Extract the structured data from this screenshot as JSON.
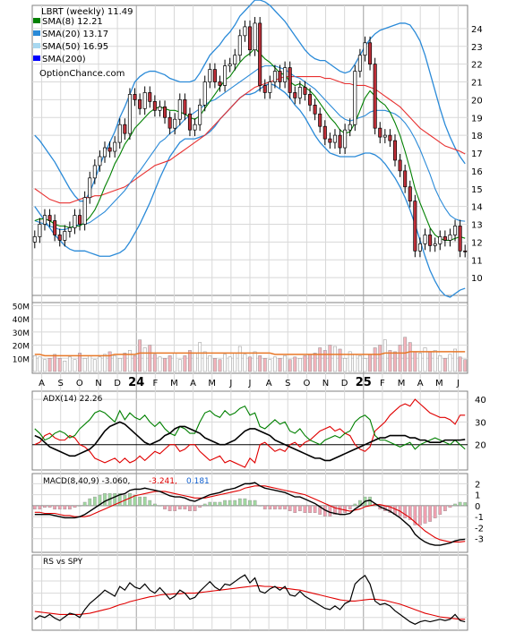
{
  "chart_data": {
    "type": "line",
    "title": "LBRT (weekly) 11.49",
    "watermark": "OptionChance.com",
    "colors": {
      "grid": "#d8d8d8",
      "up_candle": "#ffffff",
      "down_candle": "#c0303a",
      "wick": "#000000",
      "sma8": "#008000",
      "sma20": "#2a8ad8",
      "sma50": "#e83030",
      "sma200": "#0000ff",
      "bollinger_fill": "#ffff66",
      "volume_bar": "#f4b4bc",
      "volume_avg": "#e87828",
      "adx_line": "#000000",
      "di_plus": "#008000",
      "di_minus": "#e00000",
      "macd_line": "#000000",
      "macd_signal": "#e00000",
      "hist_pos": "#a0d8a0",
      "hist_neg": "#f0a0b0",
      "rs_line": "#000000",
      "rs_ma": "#e00000"
    },
    "legend": [
      {
        "label": "SMA(8) 12.21",
        "color": "#008000"
      },
      {
        "label": "SMA(20) 13.17",
        "color": "#2a8ad8"
      },
      {
        "label": "SMA(50) 16.95",
        "color": "#a8d8f0"
      },
      {
        "label": "SMA(200)",
        "color": "#0000ff"
      }
    ],
    "x_month_labels": [
      "A",
      "S",
      "O",
      "N",
      "D",
      "24",
      "F",
      "M",
      "A",
      "M",
      "J",
      "J",
      "A",
      "S",
      "O",
      "N",
      "D",
      "25",
      "F",
      "M",
      "A",
      "M",
      "J"
    ],
    "price_axis": {
      "min": 9,
      "max": 25,
      "ticks": [
        10,
        11,
        12,
        13,
        14,
        15,
        16,
        17,
        18,
        19,
        20,
        21,
        22,
        23,
        24
      ]
    },
    "volume_axis": {
      "min": 0,
      "max": 55000000,
      "tick_labels": [
        "10M",
        "20M",
        "30M",
        "40M",
        "50M"
      ],
      "tick_values": [
        10000000,
        20000000,
        30000000,
        40000000,
        50000000
      ]
    },
    "close": [
      12.3,
      13.0,
      13.5,
      13.2,
      12.4,
      12.1,
      12.6,
      12.8,
      13.5,
      13.0,
      14.5,
      15.6,
      16.3,
      16.8,
      17.3,
      17.1,
      17.6,
      18.6,
      18.1,
      20.3,
      20.0,
      19.5,
      20.4,
      19.9,
      19.4,
      19.6,
      19.0,
      18.4,
      18.9,
      20.0,
      19.2,
      18.3,
      18.6,
      19.7,
      21.0,
      21.7,
      21.0,
      20.8,
      21.9,
      22.0,
      22.5,
      23.6,
      24.1,
      22.8,
      24.3,
      20.8,
      20.4,
      21.0,
      21.6,
      21.0,
      21.8,
      20.4,
      20.1,
      20.7,
      20.3,
      19.7,
      19.2,
      18.5,
      17.8,
      17.6,
      18.0,
      17.3,
      18.3,
      18.6,
      21.6,
      22.5,
      23.2,
      22.0,
      18.4,
      17.9,
      18.0,
      17.7,
      16.6,
      16.0,
      15.1,
      14.3,
      11.5,
      11.9,
      12.4,
      11.8,
      11.9,
      12.3,
      12.1,
      12.4,
      12.9,
      11.5,
      11.49
    ],
    "sma8": [
      13.2,
      13.3,
      13.3,
      13.2,
      13.0,
      12.9,
      12.9,
      12.8,
      12.9,
      12.9,
      13.1,
      13.4,
      13.8,
      14.4,
      15.1,
      15.7,
      16.4,
      16.9,
      17.5,
      17.9,
      18.4,
      18.7,
      19.0,
      19.3,
      19.5,
      19.6,
      19.5,
      19.4,
      19.4,
      19.3,
      19.2,
      19.0,
      18.9,
      19.1,
      19.5,
      19.9,
      20.3,
      20.7,
      21.1,
      21.3,
      21.7,
      22.1,
      22.4,
      22.6,
      22.9,
      22.6,
      22.3,
      22.1,
      21.8,
      21.5,
      21.4,
      21.0,
      20.8,
      20.9,
      20.7,
      20.5,
      20.2,
      19.8,
      19.4,
      19.0,
      18.7,
      18.3,
      18.1,
      18.2,
      18.7,
      19.4,
      20.1,
      20.5,
      20.2,
      19.9,
      19.7,
      19.3,
      18.7,
      18.0,
      17.1,
      16.1,
      15.0,
      14.2,
      13.5,
      12.8,
      12.4,
      12.2,
      12.1,
      12.1,
      12.2,
      12.3,
      12.21
    ],
    "sma20": [
      13.2,
      13.1,
      13.0,
      12.9,
      12.8,
      12.7,
      12.7,
      12.8,
      12.9,
      13.0,
      13.0,
      13.1,
      13.3,
      13.5,
      13.7,
      14.0,
      14.3,
      14.6,
      14.9,
      15.3,
      15.7,
      16.0,
      16.4,
      16.8,
      17.2,
      17.6,
      17.8,
      18.1,
      18.3,
      18.6,
      18.9,
      19.1,
      19.3,
      19.5,
      19.7,
      19.9,
      20.0,
      20.2,
      20.4,
      20.6,
      20.8,
      21.0,
      21.2,
      21.4,
      21.6,
      21.8,
      21.9,
      21.9,
      21.9,
      21.8,
      21.7,
      21.5,
      21.3,
      21.2,
      21.0,
      20.8,
      20.6,
      20.3,
      20.0,
      19.7,
      19.4,
      19.1,
      18.9,
      18.8,
      18.9,
      19.0,
      19.1,
      19.3,
      19.4,
      19.4,
      19.4,
      19.3,
      19.2,
      19.0,
      18.7,
      18.3,
      17.8,
      17.2,
      16.5,
      15.8,
      15.0,
      14.4,
      13.9,
      13.5,
      13.3,
      13.2,
      13.17
    ],
    "sma50": [
      15.0,
      14.8,
      14.6,
      14.4,
      14.3,
      14.2,
      14.2,
      14.2,
      14.3,
      14.4,
      14.5,
      14.5,
      14.6,
      14.6,
      14.7,
      14.8,
      14.9,
      15.0,
      15.1,
      15.3,
      15.5,
      15.7,
      15.9,
      16.1,
      16.3,
      16.4,
      16.5,
      16.6,
      16.8,
      17.0,
      17.2,
      17.4,
      17.6,
      17.8,
      18.0,
      18.3,
      18.6,
      18.9,
      19.2,
      19.5,
      19.8,
      20.1,
      20.3,
      20.5,
      20.7,
      20.8,
      20.9,
      21.0,
      21.1,
      21.2,
      21.3,
      21.3,
      21.3,
      21.3,
      21.3,
      21.3,
      21.3,
      21.3,
      21.2,
      21.2,
      21.1,
      21.0,
      20.9,
      20.9,
      20.8,
      20.8,
      20.8,
      20.7,
      20.6,
      20.4,
      20.2,
      20.0,
      19.8,
      19.6,
      19.3,
      19.0,
      18.7,
      18.4,
      18.2,
      18.0,
      17.8,
      17.6,
      17.4,
      17.3,
      17.2,
      17.1,
      16.95
    ],
    "bb_upper": [
      18.0,
      17.7,
      17.3,
      16.9,
      16.5,
      16.0,
      15.5,
      15.0,
      14.6,
      14.3,
      14.3,
      14.8,
      15.5,
      16.3,
      17.0,
      17.6,
      18.2,
      19.0,
      19.6,
      20.3,
      21.0,
      21.3,
      21.5,
      21.6,
      21.6,
      21.5,
      21.4,
      21.2,
      21.1,
      21.0,
      21.0,
      21.0,
      21.1,
      21.5,
      22.0,
      22.5,
      22.8,
      23.1,
      23.5,
      23.8,
      24.2,
      24.7,
      25.0,
      25.3,
      25.6,
      25.6,
      25.5,
      25.3,
      25.0,
      24.7,
      24.4,
      24.0,
      23.6,
      23.2,
      22.8,
      22.5,
      22.3,
      22.2,
      22.2,
      22.0,
      21.8,
      21.6,
      21.5,
      21.6,
      22.0,
      22.5,
      23.0,
      23.4,
      23.7,
      23.9,
      24.0,
      24.1,
      24.2,
      24.3,
      24.3,
      24.2,
      23.8,
      23.3,
      22.5,
      21.5,
      20.5,
      19.5,
      18.6,
      17.9,
      17.3,
      16.8,
      16.4
    ],
    "bb_lower": [
      14.0,
      13.6,
      13.2,
      12.8,
      12.4,
      12.1,
      11.8,
      11.6,
      11.5,
      11.5,
      11.5,
      11.4,
      11.3,
      11.2,
      11.2,
      11.2,
      11.3,
      11.4,
      11.6,
      12.0,
      12.5,
      13.0,
      13.6,
      14.2,
      14.9,
      15.6,
      16.2,
      16.8,
      17.2,
      17.6,
      17.8,
      17.8,
      17.8,
      17.9,
      18.0,
      18.2,
      18.5,
      18.9,
      19.2,
      19.5,
      19.8,
      20.1,
      20.3,
      20.3,
      20.4,
      20.6,
      20.8,
      20.9,
      20.8,
      20.6,
      20.4,
      20.1,
      19.7,
      19.4,
      19.0,
      18.5,
      18.0,
      17.6,
      17.3,
      17.0,
      16.9,
      16.8,
      16.8,
      16.8,
      16.8,
      16.9,
      17.0,
      17.0,
      16.9,
      16.7,
      16.4,
      16.0,
      15.6,
      15.1,
      14.5,
      13.8,
      13.0,
      12.1,
      11.2,
      10.4,
      9.8,
      9.3,
      9.0,
      8.9,
      9.1,
      9.3,
      9.4
    ],
    "volume_m": [
      12,
      11,
      9,
      10,
      13,
      10,
      8,
      11,
      9,
      14,
      10,
      12,
      9,
      11,
      13,
      15,
      12,
      10,
      14,
      16,
      12,
      24,
      18,
      20,
      13,
      11,
      10,
      12,
      14,
      9,
      12,
      16,
      14,
      22,
      15,
      12,
      10,
      9,
      13,
      11,
      14,
      19,
      13,
      11,
      15,
      12,
      10,
      9,
      11,
      10,
      12,
      9,
      11,
      10,
      12,
      13,
      14,
      18,
      16,
      20,
      19,
      17,
      10,
      15,
      13,
      12,
      10,
      13,
      18,
      20,
      24,
      16,
      15,
      20,
      26,
      22,
      15,
      14,
      18,
      15,
      16,
      12,
      10,
      13,
      17,
      11,
      9
    ],
    "volume_avg_m": [
      13,
      13,
      12,
      12,
      12,
      12,
      12,
      12,
      12,
      12,
      12,
      12,
      12,
      12,
      12,
      12,
      13,
      13,
      13,
      13,
      13,
      14,
      14,
      14,
      14,
      14,
      14,
      14,
      14,
      14,
      14,
      14,
      14,
      14,
      14,
      14,
      14,
      14,
      14,
      14,
      14,
      14,
      14,
      14,
      14,
      14,
      14,
      14,
      13,
      13,
      13,
      13,
      13,
      13,
      13,
      13,
      13,
      13,
      13,
      13,
      13,
      13,
      13,
      13,
      13,
      13,
      13,
      13,
      13,
      13,
      14,
      14,
      14,
      14,
      14,
      15,
      15,
      15,
      15,
      15,
      15,
      15,
      15,
      15,
      15,
      15,
      15
    ],
    "adx_panel": {
      "title": "ADX(14) 22.26",
      "ticks": [
        20,
        30,
        40
      ],
      "min": 10,
      "max": 42,
      "reference": 20,
      "adx": [
        24,
        23,
        21,
        19,
        18,
        17,
        16,
        15,
        15,
        16,
        17,
        18,
        20,
        23,
        26,
        28,
        29,
        30,
        29,
        27,
        25,
        23,
        21,
        20,
        21,
        22,
        24,
        25,
        27,
        28,
        28,
        27,
        26,
        25,
        23,
        22,
        21,
        20,
        20,
        21,
        22,
        24,
        26,
        27,
        27,
        26,
        25,
        24,
        22,
        21,
        20,
        19,
        18,
        17,
        16,
        15,
        14,
        14,
        13,
        13,
        14,
        15,
        16,
        17,
        18,
        19,
        20,
        21,
        22,
        23,
        23,
        24,
        24,
        24,
        24,
        23,
        23,
        22,
        22,
        21,
        21,
        21,
        22,
        22,
        22,
        22,
        22.26
      ],
      "di_plus": [
        27,
        25,
        22,
        23,
        25,
        26,
        25,
        23,
        24,
        27,
        29,
        31,
        34,
        35,
        34,
        32,
        30,
        35,
        31,
        34,
        32,
        31,
        33,
        30,
        28,
        30,
        27,
        25,
        24,
        28,
        27,
        25,
        25,
        30,
        34,
        35,
        33,
        32,
        35,
        33,
        34,
        36,
        37,
        33,
        34,
        28,
        27,
        29,
        31,
        29,
        30,
        26,
        25,
        27,
        24,
        22,
        21,
        20,
        22,
        23,
        24,
        23,
        25,
        26,
        30,
        32,
        33,
        31,
        24,
        22,
        22,
        21,
        20,
        19,
        20,
        21,
        18,
        20,
        21,
        22,
        23,
        22,
        21,
        20,
        22,
        20,
        18
      ],
      "di_minus": [
        20,
        21,
        24,
        25,
        23,
        22,
        22,
        24,
        23,
        20,
        19,
        17,
        14,
        13,
        12,
        13,
        14,
        12,
        14,
        12,
        13,
        15,
        13,
        15,
        17,
        16,
        18,
        20,
        20,
        17,
        18,
        20,
        20,
        17,
        15,
        13,
        14,
        15,
        12,
        13,
        12,
        11,
        10,
        14,
        12,
        20,
        21,
        19,
        17,
        18,
        17,
        20,
        21,
        19,
        21,
        22,
        24,
        26,
        27,
        28,
        26,
        27,
        25,
        24,
        20,
        18,
        17,
        19,
        26,
        28,
        30,
        33,
        35,
        37,
        38,
        37,
        40,
        38,
        36,
        34,
        33,
        32,
        32,
        31,
        29,
        33,
        33
      ]
    },
    "macd_panel": {
      "title": "MACD(8,40,9) -3.060,",
      "signal_label": "-3.241,",
      "hist_label": "0.181",
      "ticks": [
        -3,
        -2,
        -1,
        0,
        1,
        2
      ],
      "min": -4,
      "max": 2.6,
      "macd": [
        -0.8,
        -0.8,
        -0.8,
        -0.8,
        -0.9,
        -1.0,
        -1.1,
        -1.1,
        -1.1,
        -1.0,
        -0.8,
        -0.5,
        -0.2,
        0.1,
        0.4,
        0.6,
        0.8,
        1.0,
        1.1,
        1.4,
        1.5,
        1.5,
        1.6,
        1.5,
        1.4,
        1.3,
        1.1,
        0.9,
        0.8,
        0.8,
        0.7,
        0.5,
        0.4,
        0.6,
        0.8,
        1.0,
        1.1,
        1.2,
        1.4,
        1.5,
        1.6,
        1.8,
        2.0,
        2.0,
        2.1,
        1.8,
        1.6,
        1.5,
        1.4,
        1.3,
        1.2,
        1.0,
        0.8,
        0.8,
        0.6,
        0.4,
        0.2,
        -0.1,
        -0.4,
        -0.6,
        -0.7,
        -0.8,
        -0.8,
        -0.7,
        -0.3,
        0.0,
        0.4,
        0.5,
        0.2,
        -0.1,
        -0.3,
        -0.5,
        -0.8,
        -1.1,
        -1.5,
        -1.9,
        -2.6,
        -3.0,
        -3.3,
        -3.5,
        -3.6,
        -3.6,
        -3.5,
        -3.4,
        -3.2,
        -3.1,
        -3.06
      ],
      "signal": [
        -0.6,
        -0.6,
        -0.7,
        -0.7,
        -0.7,
        -0.8,
        -0.9,
        -0.9,
        -1.0,
        -1.0,
        -1.0,
        -0.9,
        -0.7,
        -0.5,
        -0.3,
        -0.1,
        0.1,
        0.3,
        0.5,
        0.7,
        0.9,
        1.0,
        1.1,
        1.2,
        1.3,
        1.3,
        1.3,
        1.2,
        1.1,
        1.0,
        0.9,
        0.8,
        0.7,
        0.7,
        0.7,
        0.8,
        0.9,
        1.0,
        1.1,
        1.2,
        1.3,
        1.4,
        1.6,
        1.7,
        1.8,
        1.8,
        1.8,
        1.7,
        1.6,
        1.5,
        1.4,
        1.3,
        1.2,
        1.1,
        1.0,
        0.8,
        0.6,
        0.4,
        0.2,
        0.0,
        -0.2,
        -0.3,
        -0.4,
        -0.5,
        -0.4,
        -0.3,
        -0.1,
        0.0,
        0.1,
        0.1,
        0.0,
        -0.1,
        -0.3,
        -0.5,
        -0.8,
        -1.1,
        -1.5,
        -1.9,
        -2.3,
        -2.6,
        -2.9,
        -3.1,
        -3.2,
        -3.3,
        -3.3,
        -3.3,
        -3.24
      ]
    },
    "rs_panel": {
      "title": "RS vs SPY",
      "min": 0,
      "max": 1,
      "rs": [
        0.12,
        0.18,
        0.15,
        0.2,
        0.14,
        0.1,
        0.16,
        0.22,
        0.2,
        0.15,
        0.28,
        0.38,
        0.45,
        0.52,
        0.6,
        0.55,
        0.5,
        0.66,
        0.6,
        0.72,
        0.65,
        0.62,
        0.7,
        0.6,
        0.55,
        0.64,
        0.55,
        0.45,
        0.5,
        0.6,
        0.55,
        0.45,
        0.48,
        0.58,
        0.66,
        0.74,
        0.65,
        0.6,
        0.7,
        0.68,
        0.74,
        0.8,
        0.85,
        0.72,
        0.8,
        0.58,
        0.55,
        0.62,
        0.66,
        0.6,
        0.66,
        0.52,
        0.5,
        0.58,
        0.5,
        0.45,
        0.4,
        0.35,
        0.3,
        0.28,
        0.34,
        0.28,
        0.38,
        0.42,
        0.7,
        0.78,
        0.84,
        0.7,
        0.42,
        0.36,
        0.38,
        0.34,
        0.26,
        0.2,
        0.14,
        0.08,
        0.04,
        0.08,
        0.1,
        0.08,
        0.1,
        0.12,
        0.1,
        0.12,
        0.2,
        0.1,
        0.08
      ],
      "rs_ma": [
        0.25,
        0.24,
        0.23,
        0.22,
        0.21,
        0.2,
        0.2,
        0.2,
        0.2,
        0.2,
        0.21,
        0.22,
        0.24,
        0.26,
        0.28,
        0.3,
        0.33,
        0.36,
        0.38,
        0.41,
        0.43,
        0.45,
        0.47,
        0.49,
        0.5,
        0.52,
        0.53,
        0.53,
        0.54,
        0.54,
        0.55,
        0.55,
        0.55,
        0.56,
        0.57,
        0.58,
        0.59,
        0.6,
        0.61,
        0.62,
        0.63,
        0.64,
        0.65,
        0.66,
        0.67,
        0.67,
        0.66,
        0.66,
        0.65,
        0.64,
        0.63,
        0.62,
        0.61,
        0.6,
        0.58,
        0.56,
        0.54,
        0.52,
        0.5,
        0.48,
        0.46,
        0.44,
        0.43,
        0.42,
        0.42,
        0.43,
        0.44,
        0.45,
        0.45,
        0.44,
        0.43,
        0.41,
        0.39,
        0.37,
        0.34,
        0.31,
        0.28,
        0.25,
        0.22,
        0.2,
        0.18,
        0.16,
        0.15,
        0.14,
        0.13,
        0.12,
        0.12
      ]
    }
  }
}
